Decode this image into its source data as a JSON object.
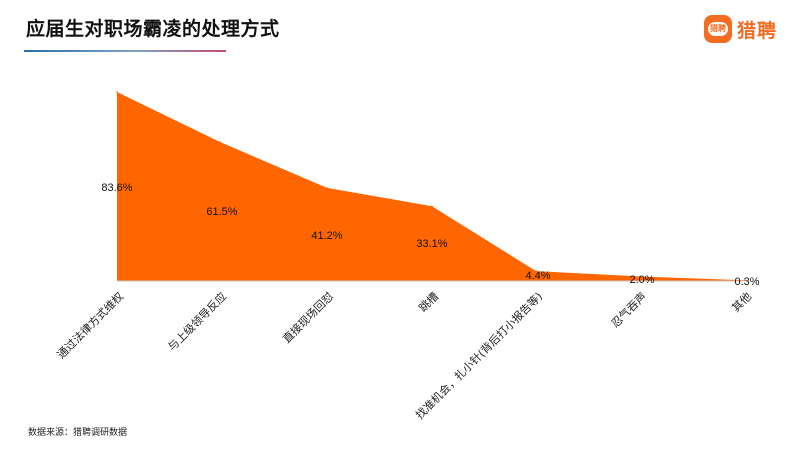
{
  "header": {
    "title": "应届生对职场霸凌的处理方式",
    "brand_mark": "猎聘",
    "brand_name": "猎聘"
  },
  "footer": {
    "source": "数据来源：猎聘调研数据"
  },
  "colors": {
    "area": "#ff6600",
    "brand": "#f46b22",
    "text": "#111111"
  },
  "chart_data": {
    "type": "area",
    "title": "应届生对职场霸凌的处理方式",
    "xlabel": "",
    "ylabel": "",
    "unit": "%",
    "ylim": [
      0,
      100
    ],
    "grid": false,
    "legend": "none",
    "categories": [
      "通过法律方式维权",
      "与上级领导反应",
      "直接现场回怼",
      "跳槽",
      "找准机会，扎小针(背后打小报告等)",
      "忍气吞声",
      "其他"
    ],
    "values": [
      83.6,
      61.5,
      41.2,
      33.1,
      4.4,
      2.0,
      0.3
    ],
    "data_labels": [
      "83.6%",
      "61.5%",
      "41.2%",
      "33.1%",
      "4.4%",
      "2.0%",
      "0.3%"
    ]
  }
}
